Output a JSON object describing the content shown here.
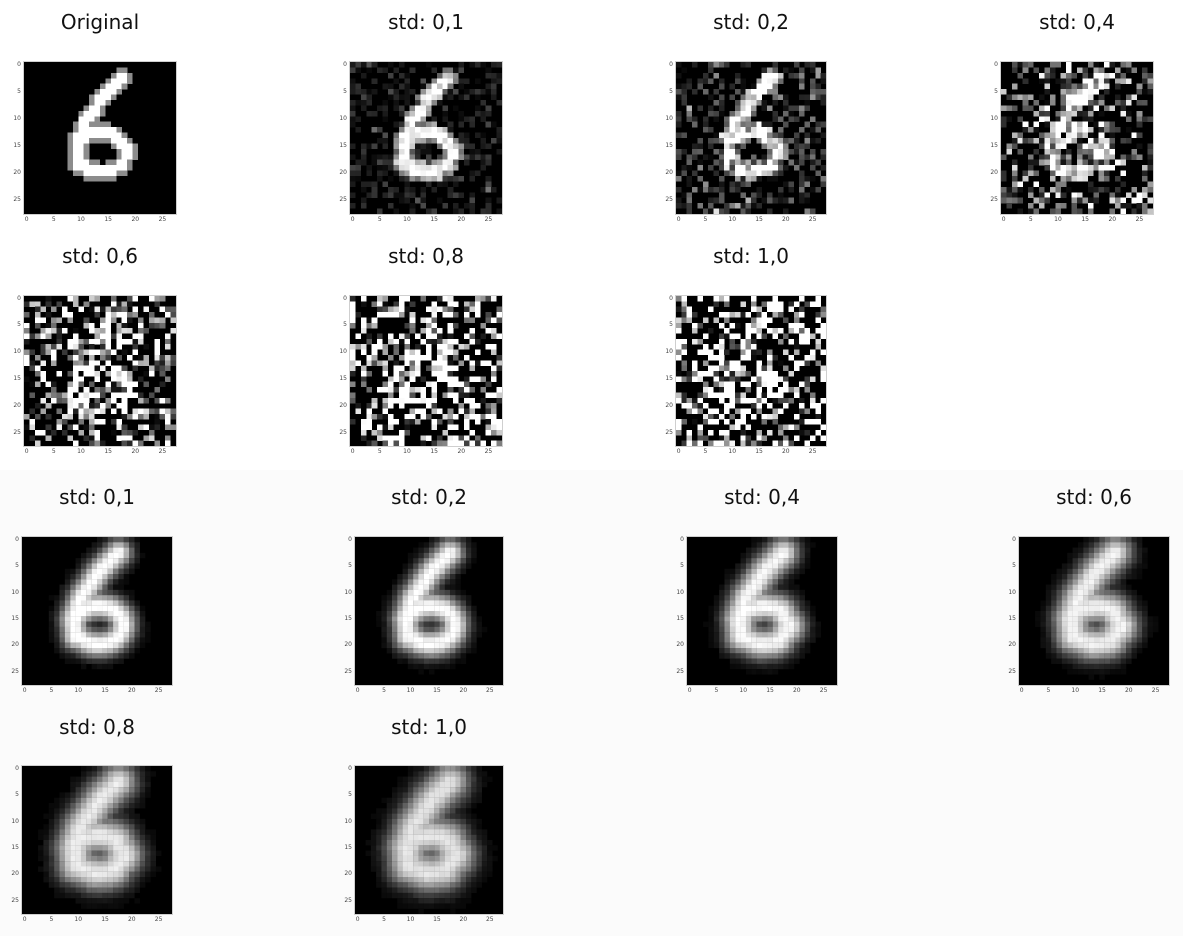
{
  "rows": [
    {
      "group": "input",
      "panels": [
        {
          "id": "p0",
          "title": "Original",
          "std": 0.0,
          "kind": "original"
        },
        {
          "id": "p1",
          "title": "std: 0,1",
          "std": 0.1,
          "kind": "noisy"
        },
        {
          "id": "p2",
          "title": "std: 0,2",
          "std": 0.2,
          "kind": "noisy"
        },
        {
          "id": "p3",
          "title": "std: 0,4",
          "std": 0.4,
          "kind": "noisy"
        }
      ]
    },
    {
      "group": "input",
      "panels": [
        {
          "id": "p4",
          "title": "std: 0,6",
          "std": 0.6,
          "kind": "noisy"
        },
        {
          "id": "p5",
          "title": "std: 0,8",
          "std": 0.8,
          "kind": "noisy"
        },
        {
          "id": "p6",
          "title": "std: 1,0",
          "std": 1.0,
          "kind": "noisy"
        }
      ]
    },
    {
      "group": "reconstruction",
      "panels": [
        {
          "id": "p7",
          "title": "std: 0,1",
          "std": 0.1,
          "kind": "reconstructed"
        },
        {
          "id": "p8",
          "title": "std: 0,2",
          "std": 0.2,
          "kind": "reconstructed"
        },
        {
          "id": "p9",
          "title": "std: 0,4",
          "std": 0.4,
          "kind": "reconstructed"
        },
        {
          "id": "p10",
          "title": "std: 0,6",
          "std": 0.6,
          "kind": "reconstructed"
        }
      ]
    },
    {
      "group": "reconstruction",
      "panels": [
        {
          "id": "p11",
          "title": "std: 0,8",
          "std": 0.8,
          "kind": "reconstructed"
        },
        {
          "id": "p12",
          "title": "std: 1,0",
          "std": 1.0,
          "kind": "reconstructed"
        }
      ]
    }
  ],
  "axis": {
    "x_ticks": [
      "0",
      "5",
      "10",
      "15",
      "20",
      "25"
    ],
    "y_ticks": [
      "0",
      "5",
      "10",
      "15",
      "20",
      "25"
    ]
  },
  "colors": {
    "image_background": "#000000",
    "image_foreground": "#ffffff",
    "title_text": "#111111"
  }
}
